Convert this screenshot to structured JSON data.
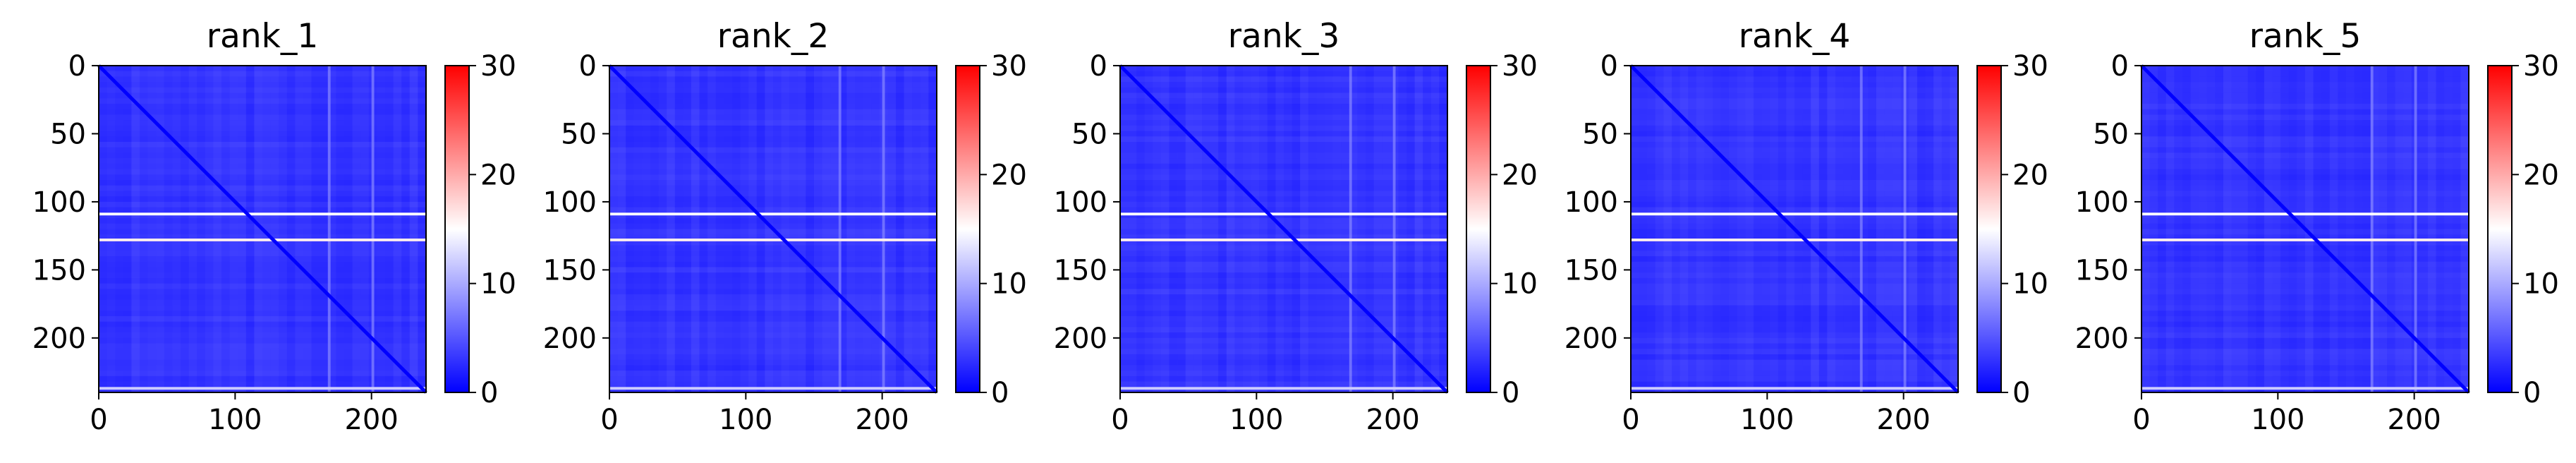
{
  "colors": {
    "cmap": [
      "#0000ff",
      "#ffffff",
      "#ff0000"
    ],
    "base": "#1e22ff",
    "diagonal": "#0000ff",
    "stripe": "#f2f2ff"
  },
  "chart_data": [
    {
      "type": "heatmap",
      "title": "rank_1",
      "matrix_size": 240,
      "colormap": "bwr",
      "xlim": [
        0,
        240
      ],
      "ylim": [
        240,
        0
      ],
      "xticks": [
        0,
        100,
        200
      ],
      "yticks": [
        0,
        50,
        100,
        150,
        200
      ],
      "colorbar": {
        "range": [
          0,
          30
        ],
        "ticks": [
          0,
          10,
          20,
          30
        ]
      },
      "typical_value": 3,
      "diagonal_value": 0,
      "bright_rows": [
        {
          "row": 108,
          "value": 15
        },
        {
          "row": 127,
          "value": 16
        },
        {
          "row": 236,
          "value": 12
        }
      ],
      "bright_cols": [
        {
          "col": 168,
          "value": 8
        },
        {
          "col": 200,
          "value": 8
        }
      ]
    },
    {
      "type": "heatmap",
      "title": "rank_2",
      "matrix_size": 240,
      "colormap": "bwr",
      "xlim": [
        0,
        240
      ],
      "ylim": [
        240,
        0
      ],
      "xticks": [
        0,
        100,
        200
      ],
      "yticks": [
        0,
        50,
        100,
        150,
        200
      ],
      "colorbar": {
        "range": [
          0,
          30
        ],
        "ticks": [
          0,
          10,
          20,
          30
        ]
      },
      "typical_value": 3,
      "diagonal_value": 0,
      "bright_rows": [
        {
          "row": 108,
          "value": 15
        },
        {
          "row": 127,
          "value": 16
        },
        {
          "row": 236,
          "value": 12
        }
      ],
      "bright_cols": [
        {
          "col": 168,
          "value": 8
        },
        {
          "col": 200,
          "value": 8
        }
      ]
    },
    {
      "type": "heatmap",
      "title": "rank_3",
      "matrix_size": 240,
      "colormap": "bwr",
      "xlim": [
        0,
        240
      ],
      "ylim": [
        240,
        0
      ],
      "xticks": [
        0,
        100,
        200
      ],
      "yticks": [
        0,
        50,
        100,
        150,
        200
      ],
      "colorbar": {
        "range": [
          0,
          30
        ],
        "ticks": [
          0,
          10,
          20,
          30
        ]
      },
      "typical_value": 3,
      "diagonal_value": 0,
      "bright_rows": [
        {
          "row": 108,
          "value": 15
        },
        {
          "row": 127,
          "value": 16
        },
        {
          "row": 236,
          "value": 12
        }
      ],
      "bright_cols": [
        {
          "col": 168,
          "value": 8
        },
        {
          "col": 200,
          "value": 8
        }
      ]
    },
    {
      "type": "heatmap",
      "title": "rank_4",
      "matrix_size": 240,
      "colormap": "bwr",
      "xlim": [
        0,
        240
      ],
      "ylim": [
        240,
        0
      ],
      "xticks": [
        0,
        100,
        200
      ],
      "yticks": [
        0,
        50,
        100,
        150,
        200
      ],
      "colorbar": {
        "range": [
          0,
          30
        ],
        "ticks": [
          0,
          10,
          20,
          30
        ]
      },
      "typical_value": 3,
      "diagonal_value": 0,
      "bright_rows": [
        {
          "row": 108,
          "value": 15
        },
        {
          "row": 127,
          "value": 16
        },
        {
          "row": 236,
          "value": 12
        }
      ],
      "bright_cols": [
        {
          "col": 168,
          "value": 8
        },
        {
          "col": 200,
          "value": 8
        }
      ]
    },
    {
      "type": "heatmap",
      "title": "rank_5",
      "matrix_size": 240,
      "colormap": "bwr",
      "xlim": [
        0,
        240
      ],
      "ylim": [
        240,
        0
      ],
      "xticks": [
        0,
        100,
        200
      ],
      "yticks": [
        0,
        50,
        100,
        150,
        200
      ],
      "colorbar": {
        "range": [
          0,
          30
        ],
        "ticks": [
          0,
          10,
          20,
          30
        ]
      },
      "typical_value": 3,
      "diagonal_value": 0,
      "bright_rows": [
        {
          "row": 108,
          "value": 15
        },
        {
          "row": 127,
          "value": 16
        },
        {
          "row": 236,
          "value": 12
        }
      ],
      "bright_cols": [
        {
          "col": 168,
          "value": 8
        },
        {
          "col": 200,
          "value": 8
        }
      ]
    }
  ]
}
